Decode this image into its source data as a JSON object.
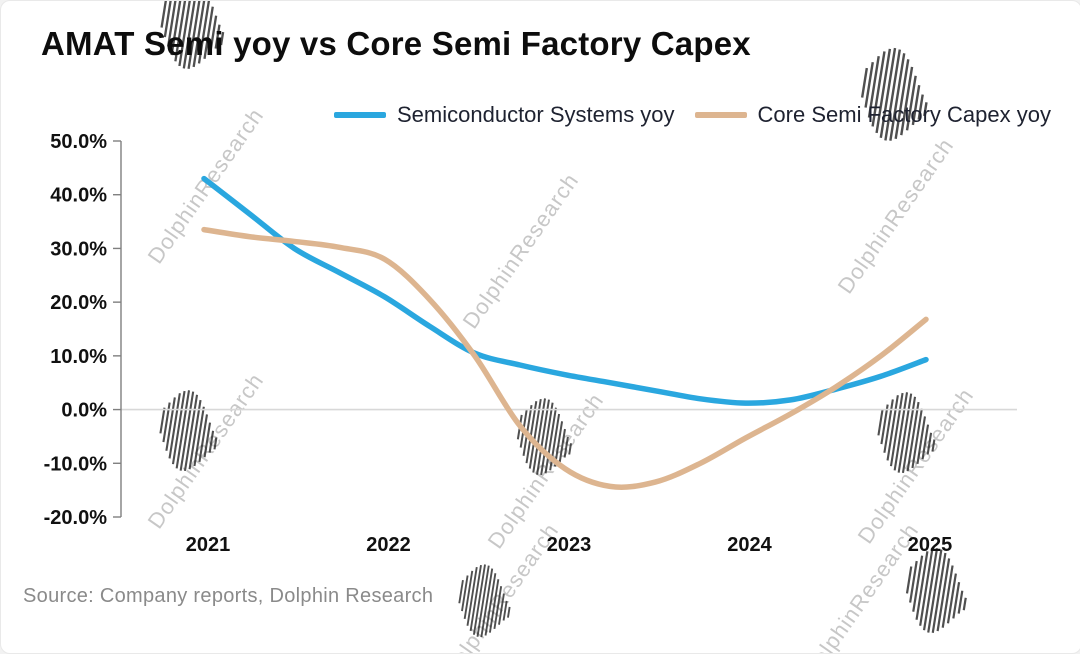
{
  "title": "AMAT Semi yoy vs Core Semi Factory Capex",
  "source": "Source: Company reports, Dolphin Research",
  "watermark_text": "DolphinResearch",
  "colors": {
    "series_blue": "#2aa7df",
    "series_tan": "#ddb590",
    "zero_line": "#d8d8d8",
    "axis": "#7f7f7f",
    "axis_text": "#111111",
    "title_text": "#0d0d0d",
    "source_text": "#8a8a8a"
  },
  "chart_data": {
    "type": "line",
    "title": "AMAT Semi yoy vs Core Semi Factory Capex",
    "xlabel": "",
    "ylabel": "",
    "ylim": [
      -20,
      50
    ],
    "grid": "zero-line-only",
    "legend_position": "top",
    "x_tick_values": [
      2021,
      2022,
      2023,
      2024,
      2025
    ],
    "x_tick_labels": [
      "2021",
      "2022",
      "2023",
      "2024",
      "2025"
    ],
    "y_tick_values": [
      50,
      40,
      30,
      20,
      10,
      0,
      -10,
      -20
    ],
    "y_tick_labels": [
      "50.0%",
      "40.0%",
      "30.0%",
      "20.0%",
      "10.0%",
      "0.0%",
      "-10.0%",
      "-20.0%"
    ],
    "x": [
      2021,
      2021.25,
      2021.5,
      2021.75,
      2022,
      2022.25,
      2022.5,
      2022.75,
      2023,
      2023.25,
      2023.5,
      2023.75,
      2024,
      2024.25,
      2024.5,
      2024.75,
      2025
    ],
    "series": [
      {
        "name": "Semiconductor Systems yoy",
        "color": "#2aa7df",
        "values": [
          43,
          36.5,
          30,
          25.5,
          21,
          15.5,
          10.5,
          8.3,
          6.5,
          5,
          3.5,
          2,
          1.2,
          1.8,
          3.8,
          6.2,
          9.3
        ]
      },
      {
        "name": "Core Semi Factory Capex yoy",
        "color": "#ddb590",
        "values": [
          33.5,
          32.2,
          31.3,
          30.2,
          28,
          20.5,
          10,
          -3,
          -11,
          -14.3,
          -13.5,
          -10,
          -5.3,
          -0.8,
          4.2,
          10,
          16.8
        ]
      }
    ]
  }
}
